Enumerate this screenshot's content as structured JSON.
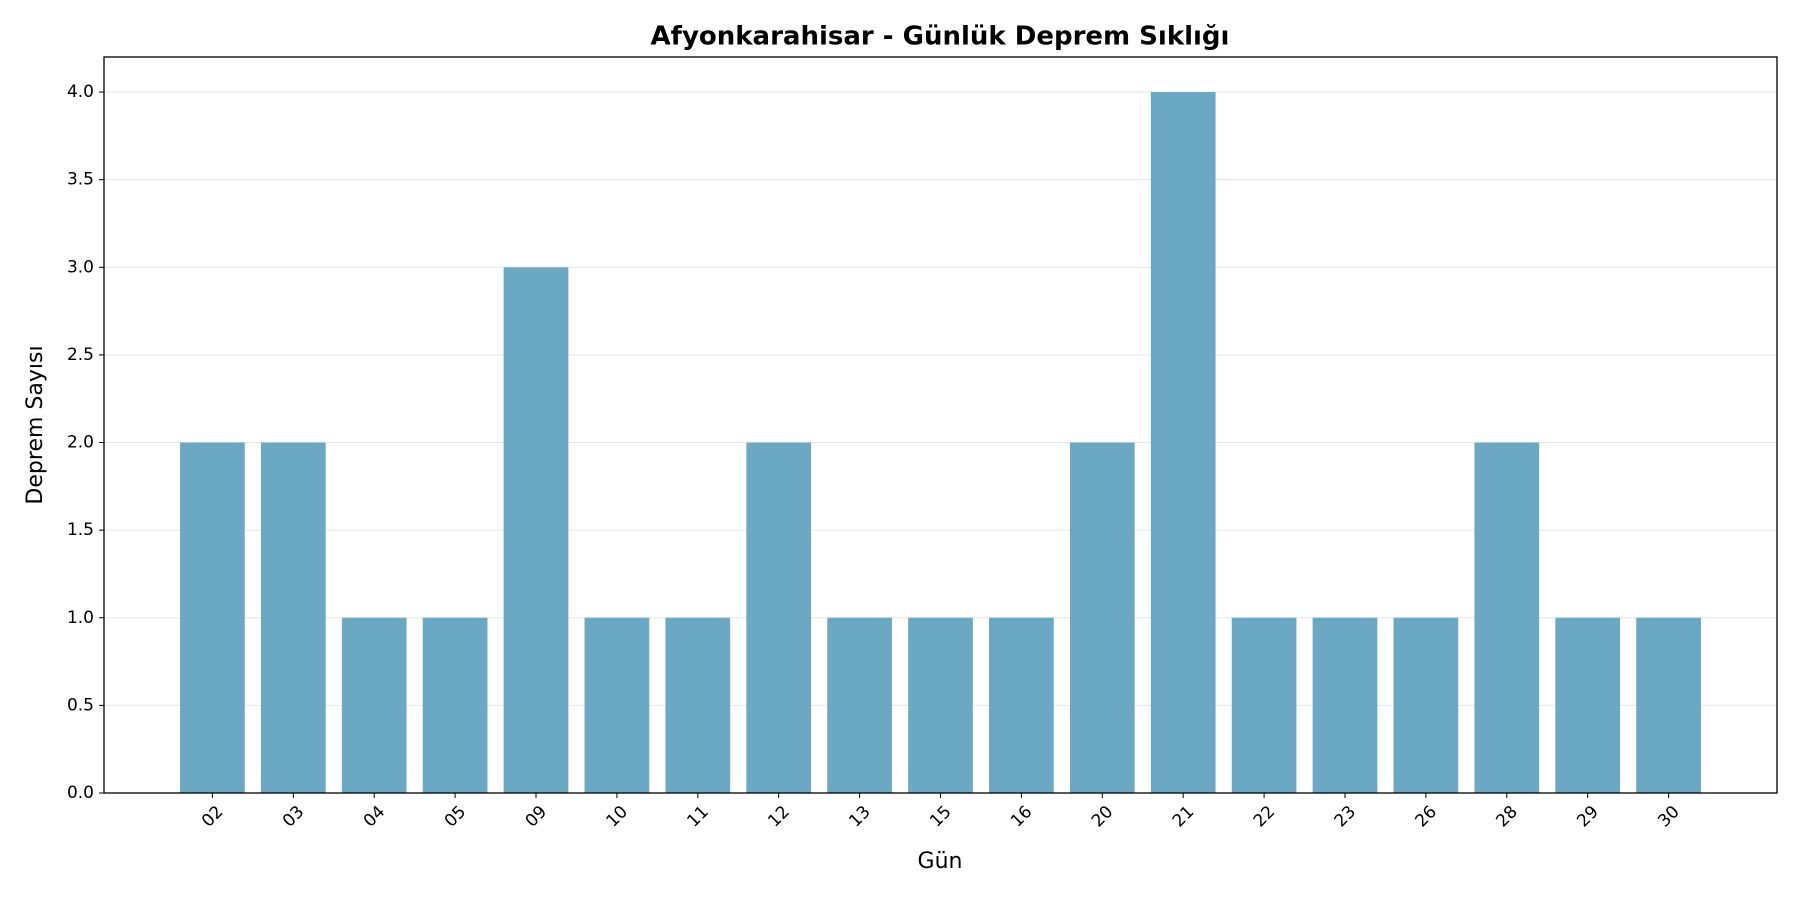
{
  "chart_data": {
    "type": "bar",
    "title": "Afyonkarahisar - Günlük Deprem Sıklığı",
    "xlabel": "Gün",
    "ylabel": "Deprem Sayısı",
    "categories": [
      "02",
      "03",
      "04",
      "05",
      "09",
      "10",
      "11",
      "12",
      "13",
      "15",
      "16",
      "20",
      "21",
      "22",
      "23",
      "26",
      "28",
      "29",
      "30"
    ],
    "values": [
      2,
      2,
      1,
      1,
      3,
      1,
      1,
      2,
      1,
      1,
      1,
      2,
      4,
      1,
      1,
      1,
      2,
      1,
      1
    ],
    "color": "#6ba8c4",
    "ylim": [
      0,
      4.2
    ],
    "yticks": [
      {
        "value": 0,
        "label": "0.0"
      },
      {
        "value": 0.5,
        "label": "0.5"
      },
      {
        "value": 1,
        "label": "1.0"
      },
      {
        "value": 1.5,
        "label": "1.5"
      },
      {
        "value": 2,
        "label": "2.0"
      },
      {
        "value": 2.5,
        "label": "2.5"
      },
      {
        "value": 3,
        "label": "3.0"
      },
      {
        "value": 3.5,
        "label": "3.5"
      },
      {
        "value": 4,
        "label": "4.0"
      }
    ],
    "grid": true
  }
}
